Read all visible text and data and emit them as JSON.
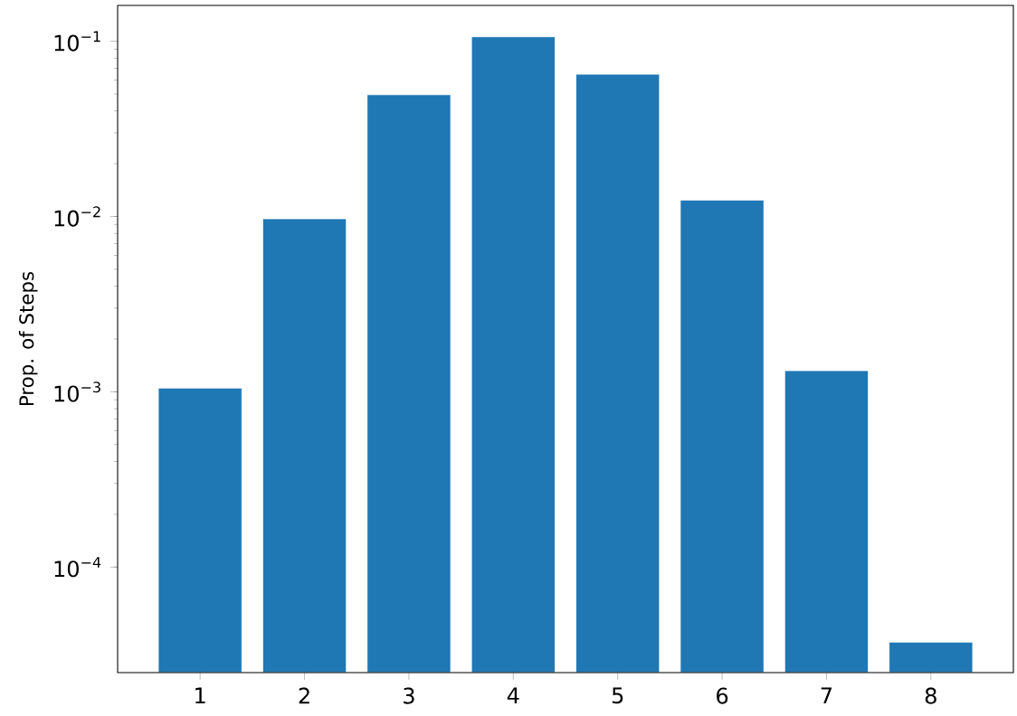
{
  "chart_data": {
    "type": "bar",
    "ylabel": "Prop. of Steps",
    "categories": [
      "1",
      "2",
      "3",
      "4",
      "5",
      "6",
      "7",
      "8"
    ],
    "values": [
      0.00105,
      0.0097,
      0.0495,
      0.106,
      0.0648,
      0.0124,
      0.00132,
      3.73e-05
    ],
    "color": "#1f77b4",
    "log": true,
    "ylim": [
      2.5e-05,
      0.16
    ],
    "yticks": [
      {
        "value": 0.0001,
        "label": "10$^{−4}$"
      },
      {
        "value": 0.001,
        "label": "10$^{−3}$"
      },
      {
        "value": 0.01,
        "label": "10$^{−2}$"
      },
      {
        "value": 0.1,
        "label": "10$^{−1}$"
      }
    ],
    "grid": false
  }
}
